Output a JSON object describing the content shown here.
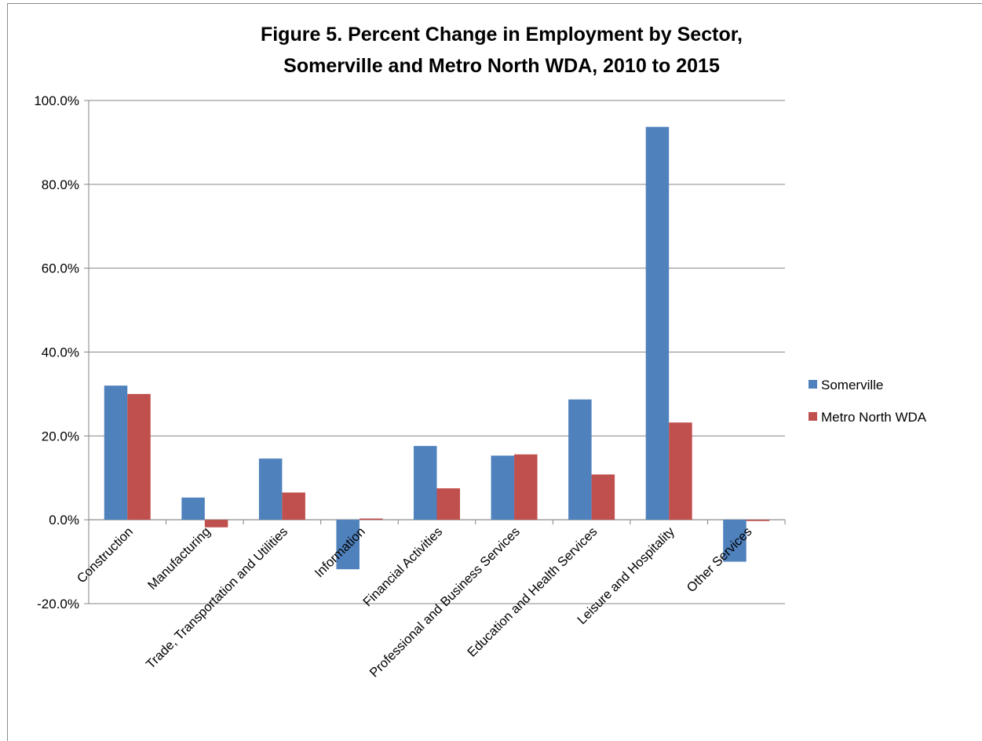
{
  "chart_data": {
    "type": "bar",
    "title": [
      "Figure  5.  Percent Change in Employment by Sector,",
      "Somerville and Metro North WDA, 2010 to 2015"
    ],
    "categories": [
      "Construction",
      "Manufacturing",
      "Trade, Transportation and Utilities",
      "Information",
      "Financial Activities",
      "Professional and Business Services",
      "Education and Health Services",
      "Leisure and Hospitality",
      "Other Services"
    ],
    "series": [
      {
        "name": "Somerville",
        "color": "#4f81bd",
        "values": [
          32.0,
          5.3,
          14.6,
          -11.8,
          17.6,
          15.3,
          28.7,
          93.7,
          -10.0
        ]
      },
      {
        "name": "Metro North WDA",
        "color": "#c0504d",
        "values": [
          30.0,
          -1.8,
          6.5,
          0.3,
          7.5,
          15.6,
          10.8,
          23.2,
          -0.3
        ]
      }
    ],
    "ylim": [
      -20,
      100
    ],
    "yticks": [
      -20,
      0,
      20,
      40,
      60,
      80,
      100
    ],
    "ytick_labels": [
      "-20.0%",
      "0.0%",
      "20.0%",
      "40.0%",
      "60.0%",
      "80.0%",
      "100.0%"
    ],
    "xlabel": "",
    "ylabel": "",
    "grid": true,
    "legend_position": "right",
    "gridline_color": "#868686"
  }
}
